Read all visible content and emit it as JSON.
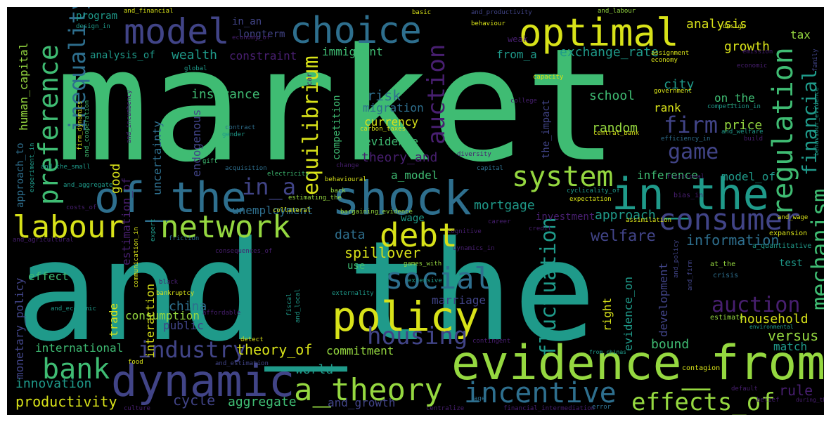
{
  "palette": {
    "background": "#000000",
    "yellow": "#d8e219",
    "lightgreen": "#95d840",
    "green": "#3fbc73",
    "teal": "#1f9a8a",
    "blue": "#2e6f8e",
    "indigo": "#414487",
    "purple": "#481f70",
    "darkpurple": "#440154"
  },
  "words": [
    {
      "text": "market",
      "color": "green"
    },
    {
      "text": "and_the",
      "color": "teal"
    },
    {
      "text": "evidence_from",
      "color": "lightgreen"
    },
    {
      "text": "dynamic",
      "color": "indigo"
    },
    {
      "text": "shock",
      "color": "blue"
    },
    {
      "text": "of_the",
      "color": "blue"
    },
    {
      "text": "in_the",
      "color": "teal"
    },
    {
      "text": "policy",
      "color": "yellow"
    },
    {
      "text": "choice",
      "color": "blue"
    },
    {
      "text": "model",
      "color": "indigo"
    },
    {
      "text": "optimal",
      "color": "yellow"
    },
    {
      "text": "labour",
      "color": "yellow"
    },
    {
      "text": "network",
      "color": "lightgreen"
    },
    {
      "text": "system",
      "color": "lightgreen"
    },
    {
      "text": "consumer",
      "color": "indigo"
    },
    {
      "text": "a_theory",
      "color": "lightgreen"
    },
    {
      "text": "incentive",
      "color": "blue"
    },
    {
      "text": "social",
      "color": "blue"
    },
    {
      "text": "debt",
      "color": "yellow"
    },
    {
      "text": "bank",
      "color": "green"
    },
    {
      "text": "industry",
      "color": "indigo"
    },
    {
      "text": "housing",
      "color": "indigo"
    },
    {
      "text": "effects_of",
      "color": "lightgreen"
    },
    {
      "text": "regulation",
      "color": "green"
    },
    {
      "text": "preference",
      "color": "green"
    },
    {
      "text": "auction",
      "color": "purple"
    },
    {
      "text": "game",
      "color": "indigo"
    },
    {
      "text": "firm",
      "color": "indigo"
    },
    {
      "text": "measure",
      "color": "purple"
    },
    {
      "text": "mechanism",
      "color": "green"
    },
    {
      "text": "financial",
      "color": "teal"
    },
    {
      "text": "fluctuation",
      "color": "teal"
    },
    {
      "text": "inequality",
      "color": "blue"
    },
    {
      "text": "equilibrium",
      "color": "yellow"
    },
    {
      "text": "in_a",
      "color": "indigo"
    },
    {
      "text": "productivity",
      "color": "yellow"
    },
    {
      "text": "innovation",
      "color": "teal"
    },
    {
      "text": "cycle",
      "color": "indigo"
    },
    {
      "text": "aggregate",
      "color": "green"
    },
    {
      "text": "and_growth",
      "color": "indigo"
    },
    {
      "text": "theory_of",
      "color": "yellow"
    },
    {
      "text": "commitment",
      "color": "lightgreen"
    },
    {
      "text": "world",
      "color": "teal"
    },
    {
      "text": "international",
      "color": "green"
    },
    {
      "text": "rule",
      "color": "purple"
    },
    {
      "text": "versus",
      "color": "lightgreen"
    },
    {
      "text": "match",
      "color": "teal"
    },
    {
      "text": "household",
      "color": "yellow"
    },
    {
      "text": "bound",
      "color": "green"
    },
    {
      "text": "development",
      "color": "indigo"
    },
    {
      "text": "evidence_on",
      "color": "teal"
    },
    {
      "text": "right",
      "color": "yellow"
    },
    {
      "text": "china",
      "color": "blue"
    },
    {
      "text": "public",
      "color": "indigo"
    },
    {
      "text": "marriage",
      "color": "indigo"
    },
    {
      "text": "spillover",
      "color": "yellow"
    },
    {
      "text": "data",
      "color": "blue"
    },
    {
      "text": "welfare",
      "color": "indigo"
    },
    {
      "text": "information",
      "color": "blue"
    },
    {
      "text": "approach",
      "color": "teal"
    },
    {
      "text": "mortgage",
      "color": "teal"
    },
    {
      "text": "inference",
      "color": "green"
    },
    {
      "text": "model_of",
      "color": "teal"
    },
    {
      "text": "theory_and",
      "color": "purple"
    },
    {
      "text": "a_model",
      "color": "green"
    },
    {
      "text": "evidence",
      "color": "green"
    },
    {
      "text": "currency",
      "color": "yellow"
    },
    {
      "text": "migration",
      "color": "blue"
    },
    {
      "text": "risk",
      "color": "blue"
    },
    {
      "text": "random",
      "color": "lightgreen"
    },
    {
      "text": "school",
      "color": "green"
    },
    {
      "text": "rank",
      "color": "yellow"
    },
    {
      "text": "city",
      "color": "teal"
    },
    {
      "text": "on_the",
      "color": "green"
    },
    {
      "text": "price",
      "color": "lightgreen"
    },
    {
      "text": "insurance",
      "color": "green"
    },
    {
      "text": "wealth",
      "color": "teal"
    },
    {
      "text": "constraint",
      "color": "purple"
    },
    {
      "text": "immigrant",
      "color": "green"
    },
    {
      "text": "exchange_rate",
      "color": "teal"
    },
    {
      "text": "from_a",
      "color": "teal"
    },
    {
      "text": "growth",
      "color": "yellow"
    },
    {
      "text": "analysis",
      "color": "yellow"
    },
    {
      "text": "tax",
      "color": "lightgreen"
    },
    {
      "text": "analysis_of",
      "color": "teal"
    },
    {
      "text": "longterm",
      "color": "indigo"
    },
    {
      "text": "in_an",
      "color": "indigo"
    },
    {
      "text": "program",
      "color": "teal"
    },
    {
      "text": "human_capital",
      "color": "lightgreen"
    },
    {
      "text": "approach_to",
      "color": "blue"
    },
    {
      "text": "monetary_policy",
      "color": "indigo"
    },
    {
      "text": "political",
      "color": "blue"
    },
    {
      "text": "effect",
      "color": "green"
    },
    {
      "text": "unemployment",
      "color": "blue"
    },
    {
      "text": "wage",
      "color": "teal"
    },
    {
      "text": "investment",
      "color": "purple"
    },
    {
      "text": "use",
      "color": "green"
    },
    {
      "text": "consumption",
      "color": "lightgreen"
    },
    {
      "text": "interaction",
      "color": "yellow"
    },
    {
      "text": "trade",
      "color": "yellow"
    },
    {
      "text": "good",
      "color": "yellow"
    },
    {
      "text": "estimation_of",
      "color": "purple"
    },
    {
      "text": "uncertainty",
      "color": "blue"
    },
    {
      "text": "endogenous",
      "color": "indigo"
    },
    {
      "text": "the_impact",
      "color": "indigo"
    },
    {
      "text": "test",
      "color": "teal"
    },
    {
      "text": "a_quantitative",
      "color": "teal"
    },
    {
      "text": "expansion",
      "color": "yellow"
    },
    {
      "text": "at_the",
      "color": "lightgreen"
    },
    {
      "text": "crisis",
      "color": "blue"
    },
    {
      "text": "estimate",
      "color": "lightgreen"
    },
    {
      "text": "environmental",
      "color": "teal"
    },
    {
      "text": "contagion",
      "color": "yellow"
    },
    {
      "text": "default",
      "color": "purple"
    },
    {
      "text": "belief",
      "color": "purple"
    },
    {
      "text": "during_the",
      "color": "purple"
    },
    {
      "text": "financial_intermediation",
      "color": "purple"
    },
    {
      "text": "centralize",
      "color": "purple"
    },
    {
      "text": "error",
      "color": "blue"
    },
    {
      "text": "age",
      "color": "blue"
    },
    {
      "text": "from_chinas",
      "color": "teal"
    },
    {
      "text": "contingent",
      "color": "purple"
    },
    {
      "text": "extensive",
      "color": "teal"
    },
    {
      "text": "games_with",
      "color": "lightgreen"
    },
    {
      "text": "dynamics_in",
      "color": "purple"
    },
    {
      "text": "cognitive",
      "color": "purple"
    },
    {
      "text": "career",
      "color": "purple"
    },
    {
      "text": "credit",
      "color": "purple"
    },
    {
      "text": "bargaining_evidence",
      "color": "lightgreen"
    },
    {
      "text": "collateral",
      "color": "yellow"
    },
    {
      "text": "estimating_the",
      "color": "lightgreen"
    },
    {
      "text": "back",
      "color": "lightgreen"
    },
    {
      "text": "behavioural",
      "color": "yellow"
    },
    {
      "text": "electricity",
      "color": "green"
    },
    {
      "text": "acquisition",
      "color": "blue"
    },
    {
      "text": "change",
      "color": "purple"
    },
    {
      "text": "capital",
      "color": "blue"
    },
    {
      "text": "diversity",
      "color": "purple"
    },
    {
      "text": "gift",
      "color": "green"
    },
    {
      "text": "gender",
      "color": "teal"
    },
    {
      "text": "contract",
      "color": "blue"
    },
    {
      "text": "carbon_taxes",
      "color": "yellow"
    },
    {
      "text": "competition",
      "color": "green"
    },
    {
      "text": "college",
      "color": "purple"
    },
    {
      "text": "capacity",
      "color": "yellow"
    },
    {
      "text": "global",
      "color": "teal"
    },
    {
      "text": "car",
      "color": "purple"
    },
    {
      "text": "weak",
      "color": "purple"
    },
    {
      "text": "behaviour",
      "color": "yellow"
    },
    {
      "text": "and_productivity",
      "color": "indigo"
    },
    {
      "text": "and_labour",
      "color": "lightgreen"
    },
    {
      "text": "basic",
      "color": "yellow"
    },
    {
      "text": "and_financial",
      "color": "yellow"
    },
    {
      "text": "design",
      "color": "yellow"
    },
    {
      "text": "design_in",
      "color": "teal"
    },
    {
      "text": "economy_of",
      "color": "purple"
    },
    {
      "text": "emission",
      "color": "purple"
    },
    {
      "text": "family",
      "color": "indigo"
    },
    {
      "text": "assignment",
      "color": "yellow"
    },
    {
      "text": "economy",
      "color": "yellow"
    },
    {
      "text": "economic",
      "color": "purple"
    },
    {
      "text": "government",
      "color": "yellow"
    },
    {
      "text": "competition_in",
      "color": "teal"
    },
    {
      "text": "and_welfare",
      "color": "teal"
    },
    {
      "text": "efficiency_in",
      "color": "blue"
    },
    {
      "text": "build",
      "color": "purple"
    },
    {
      "text": "behaviour_evidence",
      "color": "teal"
    },
    {
      "text": "central_bank",
      "color": "yellow"
    },
    {
      "text": "cyclicality_of",
      "color": "teal"
    },
    {
      "text": "frictional",
      "color": "purple"
    },
    {
      "text": "expectation",
      "color": "yellow"
    },
    {
      "text": "assimilation",
      "color": "yellow"
    },
    {
      "text": "bias_in",
      "color": "purple"
    },
    {
      "text": "and_wage",
      "color": "yellow"
    },
    {
      "text": "and_firm",
      "color": "indigo"
    },
    {
      "text": "and_policy",
      "color": "indigo"
    },
    {
      "text": "and_the_small",
      "color": "teal"
    },
    {
      "text": "and_aggregate",
      "color": "teal"
    },
    {
      "text": "costs_of",
      "color": "purple"
    },
    {
      "text": "and_agricultural",
      "color": "purple"
    },
    {
      "text": "friction",
      "color": "blue"
    },
    {
      "text": "consequences_of",
      "color": "purple"
    },
    {
      "text": "expert",
      "color": "teal"
    },
    {
      "text": "black",
      "color": "purple"
    },
    {
      "text": "communication_in",
      "color": "yellow"
    },
    {
      "text": "bankruptcy",
      "color": "yellow"
    },
    {
      "text": "affordable",
      "color": "purple"
    },
    {
      "text": "fiscal",
      "color": "teal"
    },
    {
      "text": "and_local",
      "color": "teal"
    },
    {
      "text": "externality",
      "color": "teal"
    },
    {
      "text": "and_economic",
      "color": "teal"
    },
    {
      "text": "detect",
      "color": "yellow"
    },
    {
      "text": "food",
      "color": "yellow"
    },
    {
      "text": "and_estimation",
      "color": "indigo"
    },
    {
      "text": "culture",
      "color": "purple"
    },
    {
      "text": "firm_dynamics",
      "color": "yellow"
    },
    {
      "text": "and_cooperation",
      "color": "green"
    },
    {
      "text": "and_incumbency",
      "color": "purple"
    },
    {
      "text": "experiment_in",
      "color": "teal"
    },
    {
      "text": "elasticity",
      "color": "indigo"
    },
    {
      "text": "cultural",
      "color": "purple"
    }
  ]
}
